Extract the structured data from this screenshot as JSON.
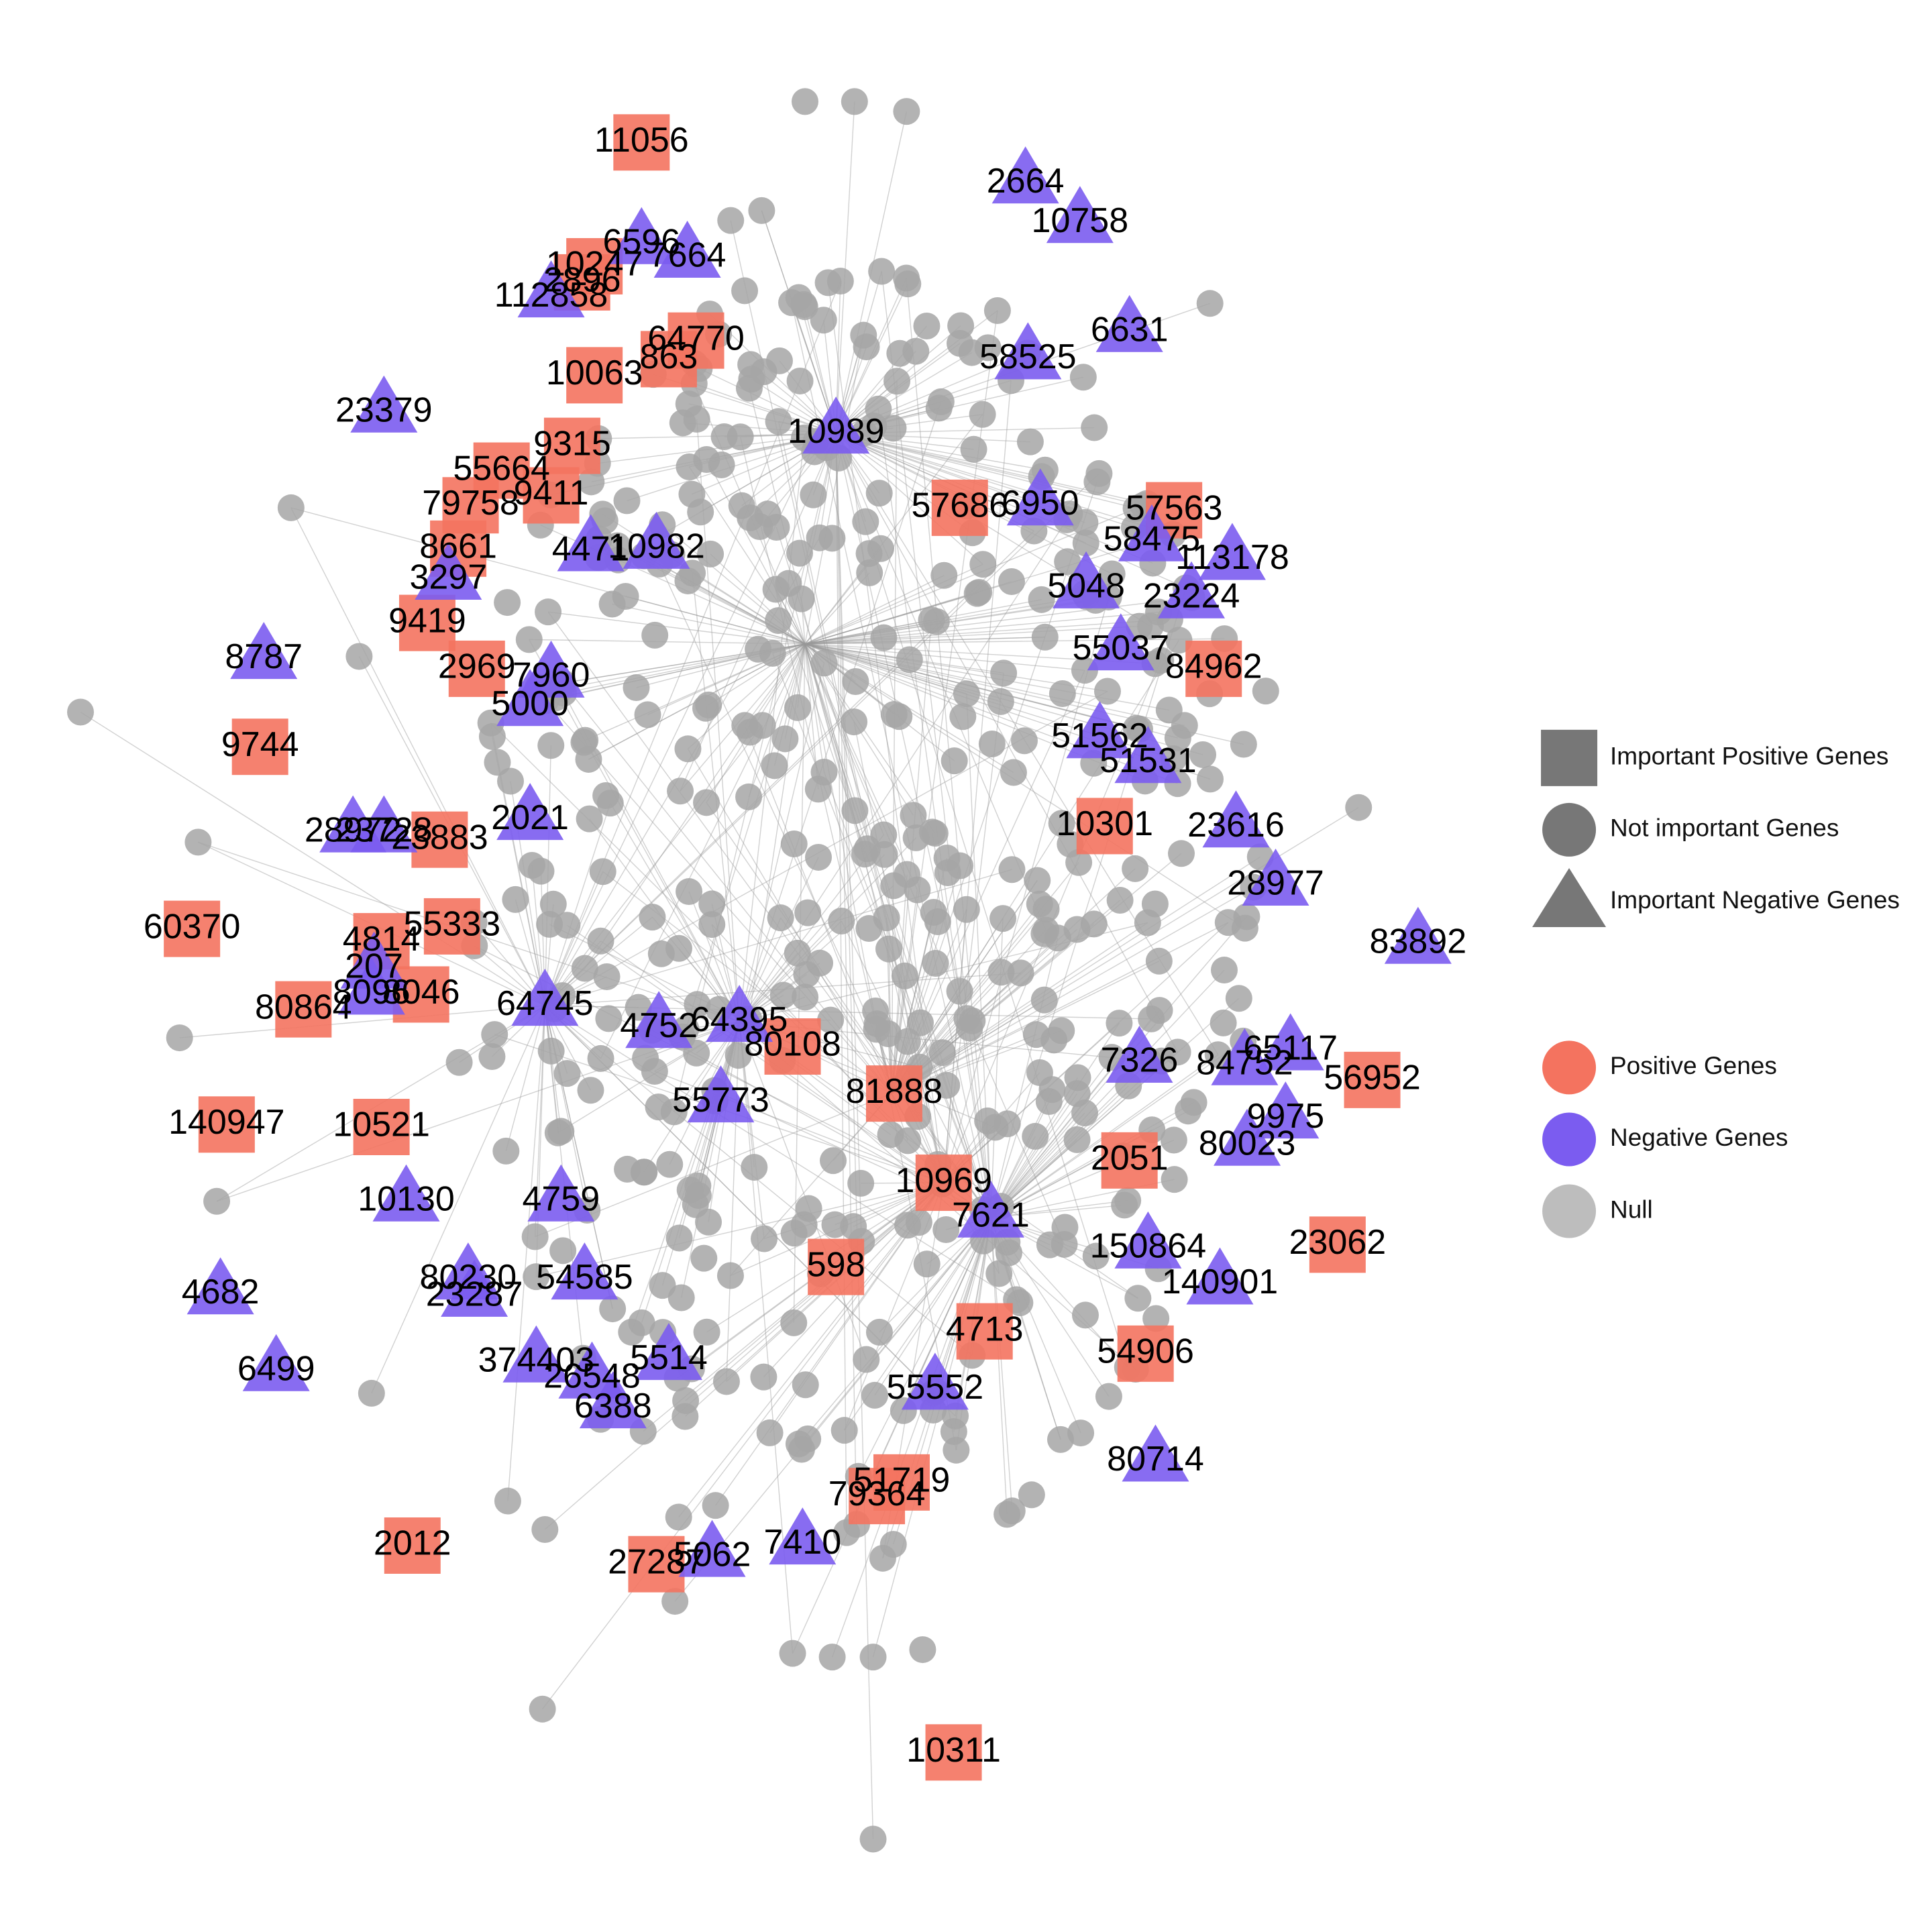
{
  "positive_nodes": [
    "11056",
    "64770",
    "863",
    "10063",
    "9315",
    "55664",
    "9411",
    "79758",
    "8661",
    "9419",
    "2969",
    "9744",
    "57686",
    "57563",
    "84962",
    "10301",
    "23883",
    "60370",
    "55333",
    "4814",
    "80864",
    "8046",
    "140947",
    "10521",
    "80108",
    "81888",
    "56952",
    "2051",
    "10969",
    "23062",
    "598",
    "4713",
    "54906",
    "51719",
    "79364",
    "2012",
    "27287",
    "10311",
    "10247",
    "2896"
  ],
  "negative_nodes": [
    "2664",
    "10758",
    "6596",
    "7664",
    "112858",
    "6631",
    "58525",
    "23379",
    "10989",
    "6950",
    "58475",
    "113178",
    "4471",
    "10982",
    "3297",
    "5048",
    "23224",
    "8787",
    "7960",
    "5000",
    "55037",
    "51562",
    "51531",
    "23616",
    "2021",
    "28972",
    "23728",
    "28977",
    "83892",
    "207",
    "8096",
    "64745",
    "4752",
    "64395",
    "7326",
    "84752",
    "65117",
    "9975",
    "80023",
    "55773",
    "10130",
    "4759",
    "7621",
    "150864",
    "140901",
    "4682",
    "80230",
    "23287",
    "54585",
    "374403",
    "5514",
    "26548",
    "6388",
    "55552",
    "80714",
    "7410",
    "6499",
    "5062"
  ],
  "legend": {
    "shapes": [
      "Important Positive Genes",
      "Not important Genes",
      "Important Negative Genes"
    ],
    "colors": [
      "Positive Genes",
      "Negative Genes",
      "Null"
    ]
  }
}
